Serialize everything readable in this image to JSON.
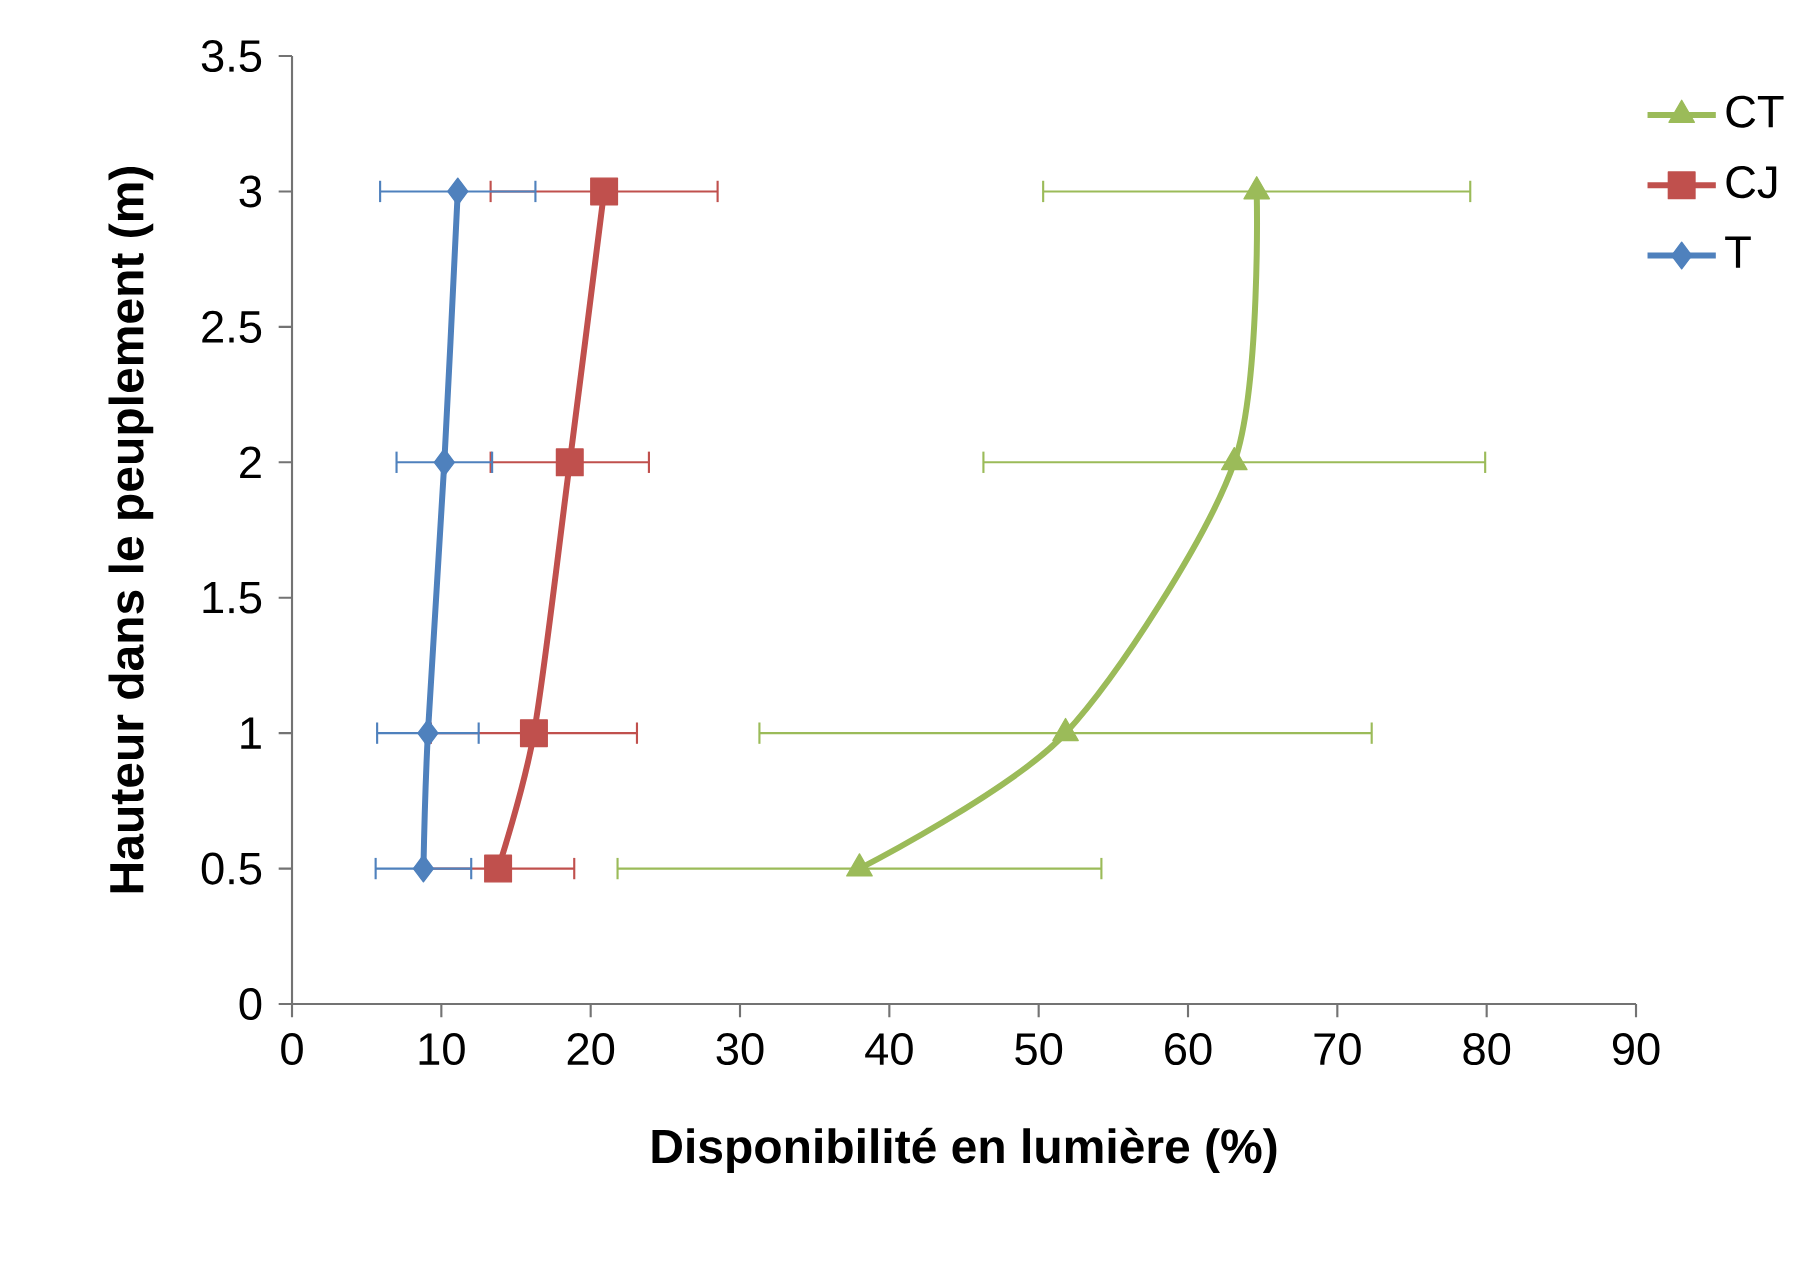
{
  "chart_data": {
    "type": "line",
    "xlabel": "Disponibilité en lumière (%)",
    "ylabel": "Hauteur dans le peuplement (m)",
    "xlim": [
      0,
      90
    ],
    "xticks": [
      0,
      10,
      20,
      30,
      40,
      50,
      60,
      70,
      80,
      90
    ],
    "ylim": [
      0,
      3.5
    ],
    "yticks": [
      0,
      0.5,
      1,
      1.5,
      2,
      2.5,
      3,
      3.5
    ],
    "grid": false,
    "legend": "top right",
    "series": [
      {
        "name": "CT",
        "color": "#9bbb59",
        "marker": "triangle",
        "x": [
          38.0,
          51.8,
          63.1,
          64.6
        ],
        "values": [
          0.5,
          1,
          2,
          3
        ],
        "xerrors": [
          16.2,
          20.5,
          16.8,
          14.3
        ]
      },
      {
        "name": "CJ",
        "color": "#c0504d",
        "marker": "square",
        "x": [
          13.8,
          16.2,
          18.6,
          20.9
        ],
        "values": [
          0.5,
          1,
          2,
          3
        ],
        "xerrors": [
          5.1,
          6.9,
          5.3,
          7.6
        ]
      },
      {
        "name": "T",
        "color": "#4f81bd",
        "marker": "diamond",
        "x": [
          8.8,
          9.1,
          10.2,
          11.1
        ],
        "values": [
          0.5,
          1,
          2,
          3
        ],
        "xerrors": [
          3.2,
          3.4,
          3.2,
          5.2
        ]
      }
    ]
  }
}
